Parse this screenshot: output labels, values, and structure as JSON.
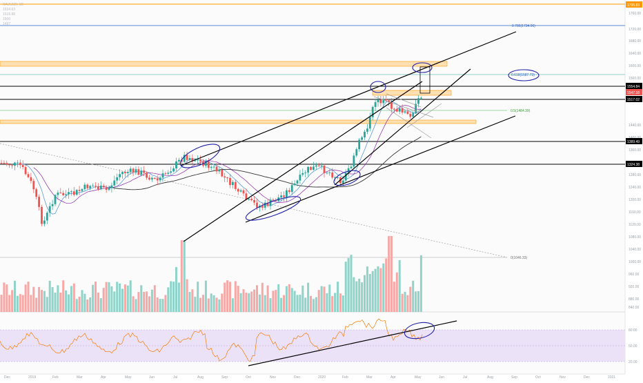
{
  "legend_lines": [
    "XAUUSD, 1D",
    "1534.63",
    "1516.88",
    "1500",
    "1497"
  ],
  "fib_labels": {
    "f786": "0.786(1734.96)",
    "f618": "0.618(1587.73)",
    "f5": "0.5(1484.39)",
    "f0": "0(1046.33)"
  },
  "price_badges": {
    "top": "1795.83",
    "r1": "1554.84",
    "last": "1547.18",
    "r2": "1517.02",
    "s1": "1389.49",
    "s2": "1324.38"
  },
  "y_ticks": [
    "1760.00",
    "1720.00",
    "1680.00",
    "1640.00",
    "1600.00",
    "1560.00",
    "1440.00",
    "1400.00",
    "1360.00",
    "1280.00",
    "1240.00",
    "1200.00",
    "1160.00",
    "1120.00",
    "1080.00",
    "1040.00",
    "1000.00",
    "960.00",
    "920.00",
    "880.00",
    "840.00"
  ],
  "rsi_ticks": [
    "80.00",
    "50.00",
    "20.00"
  ],
  "x_ticks": [
    "Dec",
    "2019",
    "Feb",
    "Mar",
    "Apr",
    "May",
    "Jun",
    "Jul",
    "Aug",
    "Sep",
    "Oct",
    "Nov",
    "Dec",
    "2020",
    "Feb",
    "Mar",
    "Apr",
    "May",
    "Jun",
    "Jul",
    "Aug",
    "Sep",
    "Oct",
    "Nov",
    "Dec",
    "2021"
  ],
  "chart_data": {
    "type": "candlestick",
    "symbol": "XAUUSD, 1D",
    "last_price": 1547.18,
    "fib_levels": [
      {
        "ratio": 0.786,
        "price": 1734.96
      },
      {
        "ratio": 0.618,
        "price": 1587.73
      },
      {
        "ratio": 0.5,
        "price": 1484.39
      },
      {
        "ratio": 0,
        "price": 1046.33
      }
    ],
    "horizontal_levels": [
      1795.83,
      1554.84,
      1517.02,
      1389.49,
      1324.38
    ],
    "indicators": [
      "Volume",
      "RSI"
    ],
    "colors": {
      "up": "#26a69a",
      "down": "#ef5350",
      "rsi_band": "#e9dcf7",
      "ellipse": "#1f1fa8",
      "fib": "#2a62c9",
      "level": "#ff9800"
    }
  }
}
